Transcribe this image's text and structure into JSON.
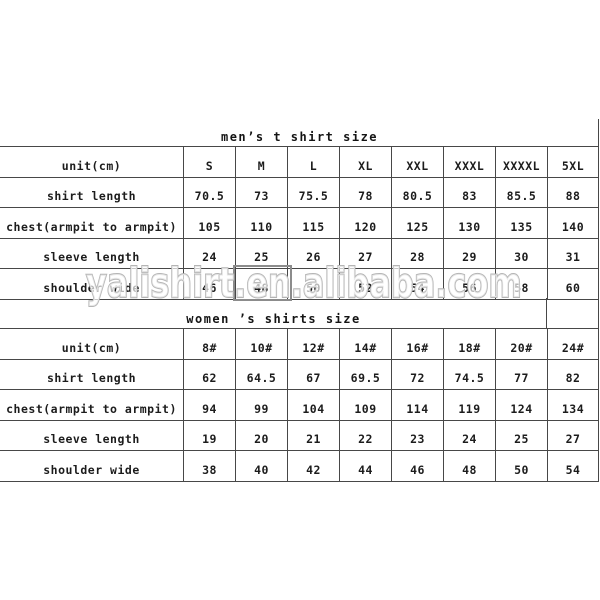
{
  "page": {
    "background": "#ffffff",
    "line_color": "#474747"
  },
  "watermark": {
    "text": "yalishirt.en.alibaba.com",
    "stroke_color": "#b5b5b5"
  },
  "tables": [
    {
      "id": "mens",
      "title": "men’s t shirt size",
      "unit_label": "unit(cm)",
      "columns": [
        "S",
        "M",
        "L",
        "XL",
        "XXL",
        "XXXL",
        "XXXXL",
        "5XL"
      ],
      "rows": [
        {
          "label": "shirt length",
          "values": [
            "70.5",
            "73",
            "75.5",
            "78",
            "80.5",
            "83",
            "85.5",
            "88"
          ]
        },
        {
          "label": "chest(armpit to armpit)",
          "values": [
            "105",
            "110",
            "115",
            "120",
            "125",
            "130",
            "135",
            "140"
          ]
        },
        {
          "label": "sleeve length",
          "values": [
            "24",
            "25",
            "26",
            "27",
            "28",
            "29",
            "30",
            "31"
          ]
        },
        {
          "label": "shoulder wide",
          "values": [
            "46",
            "48",
            "50",
            "52",
            "54",
            "56",
            "58",
            "60"
          ]
        }
      ]
    },
    {
      "id": "womens",
      "title": "women ’s shirts size",
      "unit_label": "unit(cm)",
      "columns": [
        "8#",
        "10#",
        "12#",
        "14#",
        "16#",
        "18#",
        "20#",
        "24#"
      ],
      "rows": [
        {
          "label": "shirt length",
          "values": [
            "62",
            "64.5",
            "67",
            "69.5",
            "72",
            "74.5",
            "77",
            "82"
          ]
        },
        {
          "label": "chest(armpit to armpit)",
          "values": [
            "94",
            "99",
            "104",
            "109",
            "114",
            "119",
            "124",
            "134"
          ]
        },
        {
          "label": "sleeve length",
          "values": [
            "19",
            "20",
            "21",
            "22",
            "23",
            "24",
            "25",
            "27"
          ]
        },
        {
          "label": "shoulder wide",
          "values": [
            "38",
            "40",
            "42",
            "44",
            "46",
            "48",
            "50",
            "54"
          ]
        }
      ]
    }
  ]
}
